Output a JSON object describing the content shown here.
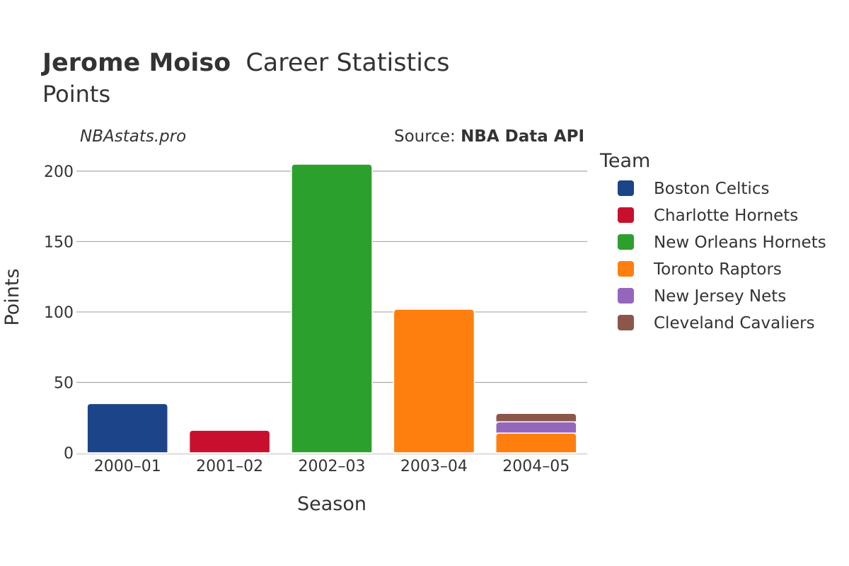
{
  "header": {
    "title_bold": "Jerome Moiso",
    "title_rest": "Career Statistics",
    "subtitle": "Points"
  },
  "annotations": {
    "watermark": "NBAstats.pro",
    "source_prefix": "Source: ",
    "source_name": "NBA Data API"
  },
  "legend": {
    "title": "Team"
  },
  "chart_data": {
    "type": "bar",
    "stacked": true,
    "xlabel": "Season",
    "ylabel": "Points",
    "ylim": [
      0,
      210
    ],
    "yticks": [
      0,
      50,
      100,
      150,
      200
    ],
    "categories": [
      "2000–01",
      "2001–02",
      "2002–03",
      "2003–04",
      "2004–05"
    ],
    "series": [
      {
        "name": "Boston Celtics",
        "color": "#1c4488",
        "values": [
          35,
          0,
          0,
          0,
          0
        ]
      },
      {
        "name": "Charlotte Hornets",
        "color": "#c8102e",
        "values": [
          0,
          16,
          0,
          0,
          0
        ]
      },
      {
        "name": "New Orleans Hornets",
        "color": "#2ca02c",
        "values": [
          0,
          0,
          205,
          0,
          0
        ]
      },
      {
        "name": "Toronto Raptors",
        "color": "#ff7f0e",
        "values": [
          0,
          0,
          0,
          102,
          14
        ]
      },
      {
        "name": "New Jersey Nets",
        "color": "#9467bd",
        "values": [
          0,
          0,
          0,
          0,
          8
        ]
      },
      {
        "name": "Cleveland Cavaliers",
        "color": "#8c564b",
        "values": [
          0,
          0,
          0,
          0,
          6
        ]
      }
    ],
    "grid": true,
    "legend_position": "right"
  }
}
